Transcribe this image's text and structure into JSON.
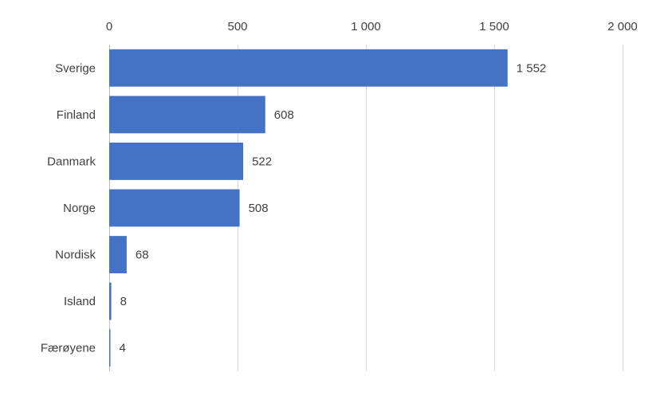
{
  "chart_data": {
    "type": "bar",
    "orientation": "horizontal",
    "categories": [
      "Sverige",
      "Finland",
      "Danmark",
      "Norge",
      "Nordisk",
      "Island",
      "Færøyene"
    ],
    "values": [
      1552,
      608,
      522,
      508,
      68,
      8,
      4
    ],
    "value_labels": [
      "1 552",
      "608",
      "522",
      "508",
      "68",
      "8",
      "4"
    ],
    "xlim": [
      0,
      2000
    ],
    "x_ticks": [
      0,
      500,
      1000,
      1500,
      2000
    ],
    "x_tick_labels": [
      "0",
      "500",
      "1 000",
      "1 500",
      "2 000"
    ],
    "x_axis_position": "top",
    "grid": true,
    "legend": "none",
    "bar_color": "#4472c4"
  }
}
